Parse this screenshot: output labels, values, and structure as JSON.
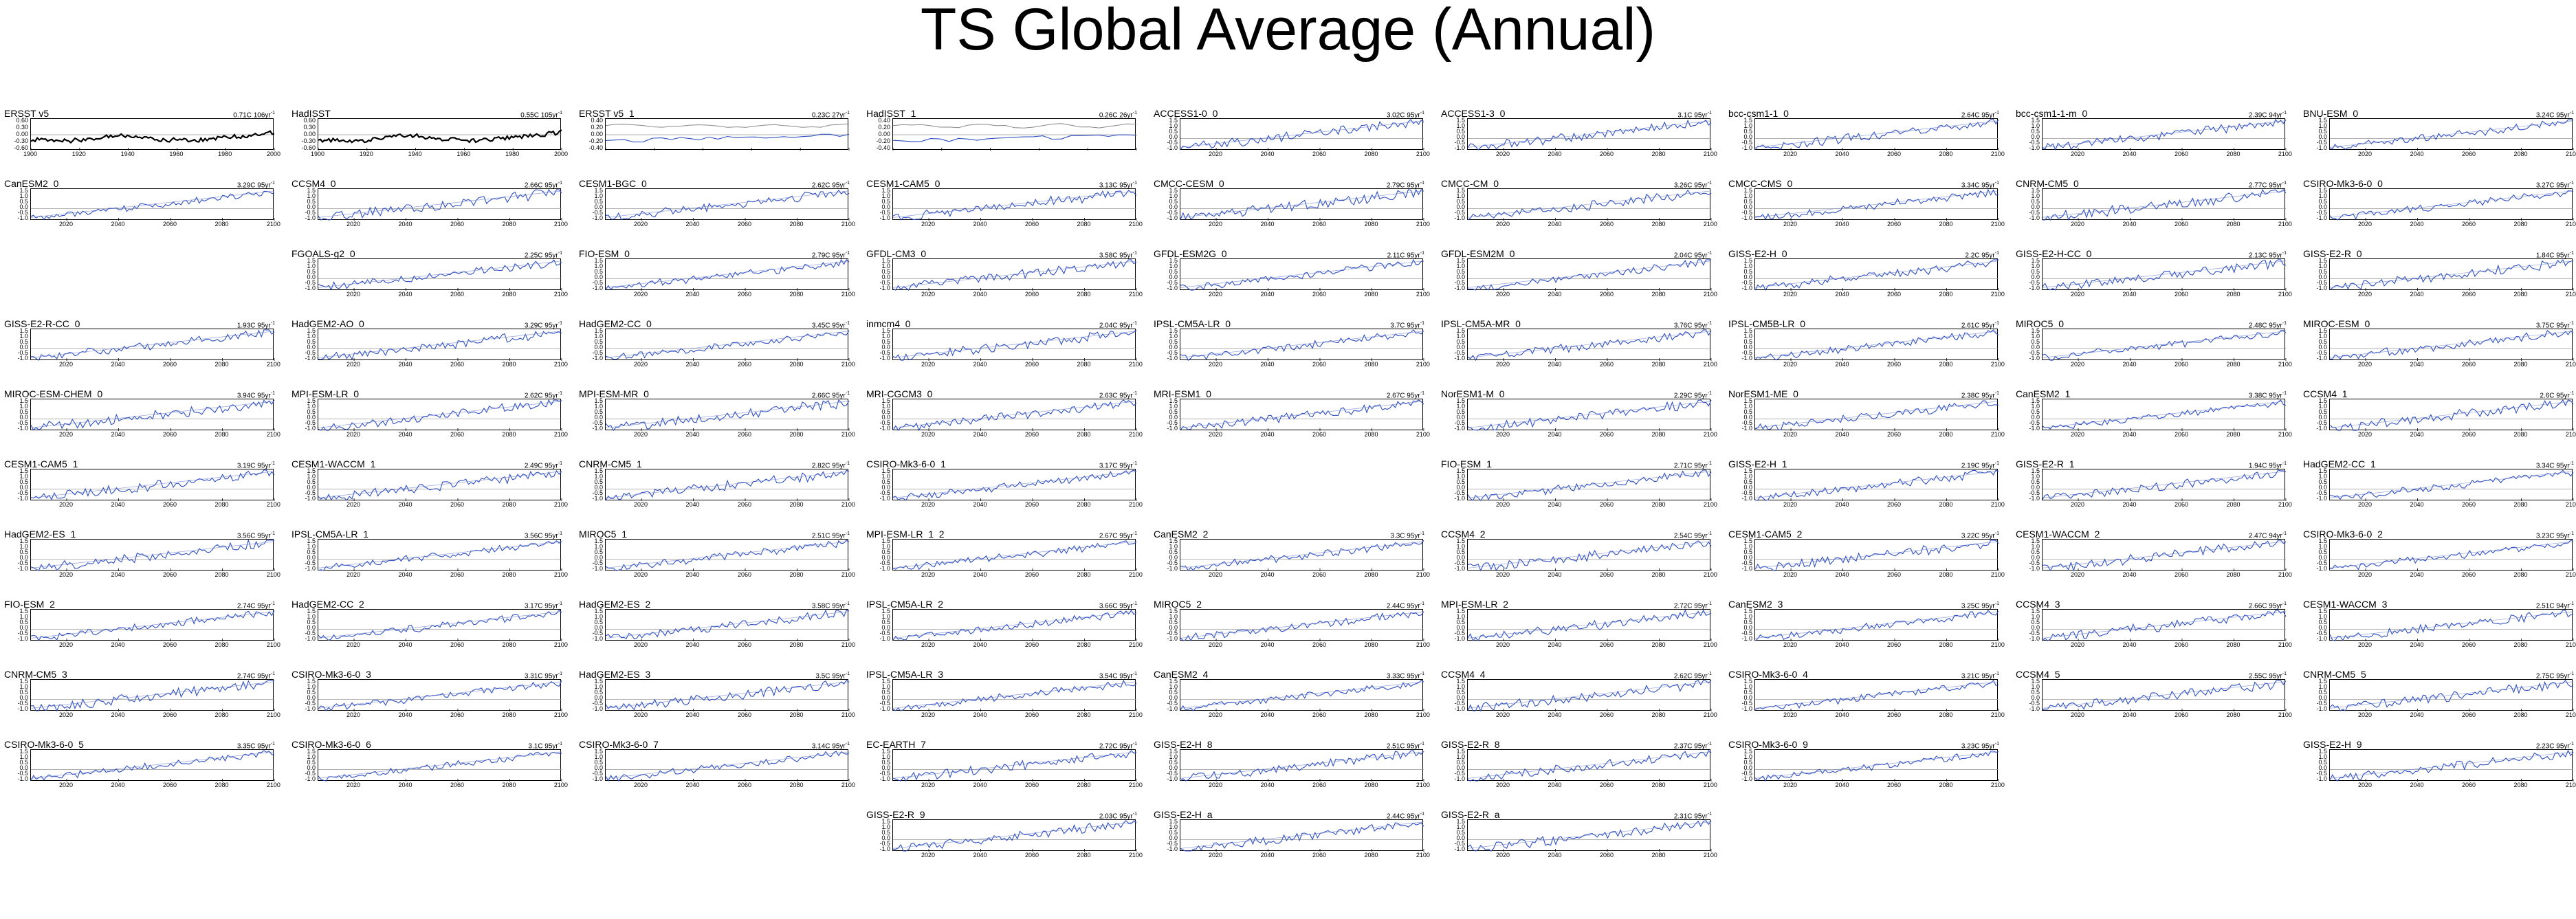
{
  "page": {
    "title": "TS Global Average (Annual)"
  },
  "layout_hint": {
    "columns": 9
  },
  "panels": [
    {
      "name": "ERSST v5",
      "trend": "0.71C 106yr",
      "tsup": "-1",
      "kind": "obs",
      "row": 0,
      "col": 0
    },
    {
      "name": "HadISST",
      "trend": "0.55C 105yr",
      "tsup": "-1",
      "kind": "obs",
      "row": 0,
      "col": 1
    },
    {
      "name": "ERSST v5_1",
      "trend": "0.23C 27yr",
      "tsup": "-1",
      "kind": "obs2",
      "row": 0,
      "col": 2
    },
    {
      "name": "HadISST_1",
      "trend": "0.26C 26yr",
      "tsup": "-1",
      "kind": "obs2",
      "row": 0,
      "col": 3
    },
    {
      "name": "ACCESS1-0_0",
      "trend": "3.02C 95yr",
      "tsup": "-1",
      "kind": "model",
      "row": 0,
      "col": 4
    },
    {
      "name": "ACCESS1-3_0",
      "trend": "3.1C 95yr",
      "tsup": "-1",
      "kind": "model",
      "row": 0,
      "col": 5
    },
    {
      "name": "bcc-csm1-1_0",
      "trend": "2.64C 95yr",
      "tsup": "-1",
      "kind": "model",
      "row": 0,
      "col": 6
    },
    {
      "name": "bcc-csm1-1-m_0",
      "trend": "2.39C 94yr",
      "tsup": "-1",
      "kind": "model",
      "row": 0,
      "col": 7
    },
    {
      "name": "BNU-ESM_0",
      "trend": "3.24C 95yr",
      "tsup": "-1",
      "kind": "model",
      "row": 0,
      "col": 8
    },
    {
      "name": "CanESM2_0",
      "trend": "3.29C 95yr",
      "tsup": "-1",
      "kind": "model",
      "row": 1,
      "col": 0
    },
    {
      "name": "CCSM4_0",
      "trend": "2.66C 95yr",
      "tsup": "-1",
      "kind": "model",
      "row": 1,
      "col": 1
    },
    {
      "name": "CESM1-BGC_0",
      "trend": "2.62C 95yr",
      "tsup": "-1",
      "kind": "model",
      "row": 1,
      "col": 2
    },
    {
      "name": "CESM1-CAM5_0",
      "trend": "3.13C 95yr",
      "tsup": "-1",
      "kind": "model",
      "row": 1,
      "col": 3
    },
    {
      "name": "CMCC-CESM_0",
      "trend": "2.79C 95yr",
      "tsup": "-1",
      "kind": "model",
      "row": 1,
      "col": 4
    },
    {
      "name": "CMCC-CM_0",
      "trend": "3.26C 95yr",
      "tsup": "-1",
      "kind": "model",
      "row": 1,
      "col": 5
    },
    {
      "name": "CMCC-CMS_0",
      "trend": "3.34C 95yr",
      "tsup": "-1",
      "kind": "model",
      "row": 1,
      "col": 6
    },
    {
      "name": "CNRM-CM5_0",
      "trend": "2.77C 95yr",
      "tsup": "-1",
      "kind": "model",
      "row": 1,
      "col": 7
    },
    {
      "name": "CSIRO-Mk3-6-0_0",
      "trend": "3.27C 95yr",
      "tsup": "-1",
      "kind": "model",
      "row": 1,
      "col": 8
    },
    {
      "name": "FGOALS-g2_0",
      "trend": "2.25C 95yr",
      "tsup": "-1",
      "kind": "model",
      "row": 2,
      "col": 1
    },
    {
      "name": "FIO-ESM_0",
      "trend": "2.79C 95yr",
      "tsup": "-1",
      "kind": "model",
      "row": 2,
      "col": 2
    },
    {
      "name": "GFDL-CM3_0",
      "trend": "3.58C 95yr",
      "tsup": "-1",
      "kind": "model",
      "row": 2,
      "col": 3
    },
    {
      "name": "GFDL-ESM2G_0",
      "trend": "2.11C 95yr",
      "tsup": "-1",
      "kind": "model",
      "row": 2,
      "col": 4
    },
    {
      "name": "GFDL-ESM2M_0",
      "trend": "2.04C 95yr",
      "tsup": "-1",
      "kind": "model",
      "row": 2,
      "col": 5
    },
    {
      "name": "GISS-E2-H_0",
      "trend": "2.2C 95yr",
      "tsup": "-1",
      "kind": "model",
      "row": 2,
      "col": 6
    },
    {
      "name": "GISS-E2-H-CC_0",
      "trend": "2.13C 95yr",
      "tsup": "-1",
      "kind": "model",
      "row": 2,
      "col": 7
    },
    {
      "name": "GISS-E2-R_0",
      "trend": "1.84C 95yr",
      "tsup": "-1",
      "kind": "model",
      "row": 2,
      "col": 8
    },
    {
      "name": "GISS-E2-R-CC_0",
      "trend": "1.93C 95yr",
      "tsup": "-1",
      "kind": "model",
      "row": 3,
      "col": 0
    },
    {
      "name": "HadGEM2-AO_0",
      "trend": "3.29C 95yr",
      "tsup": "-1",
      "kind": "model",
      "row": 3,
      "col": 1
    },
    {
      "name": "HadGEM2-CC_0",
      "trend": "3.45C 95yr",
      "tsup": "-1",
      "kind": "model",
      "row": 3,
      "col": 2
    },
    {
      "name": "inmcm4_0",
      "trend": "2.04C 95yr",
      "tsup": "-1",
      "kind": "model",
      "row": 3,
      "col": 3
    },
    {
      "name": "IPSL-CM5A-LR_0",
      "trend": "3.7C 95yr",
      "tsup": "-1",
      "kind": "model",
      "row": 3,
      "col": 4
    },
    {
      "name": "IPSL-CM5A-MR_0",
      "trend": "3.76C 95yr",
      "tsup": "-1",
      "kind": "model",
      "row": 3,
      "col": 5
    },
    {
      "name": "IPSL-CM5B-LR_0",
      "trend": "2.61C 95yr",
      "tsup": "-1",
      "kind": "model",
      "row": 3,
      "col": 6
    },
    {
      "name": "MIROC5_0",
      "trend": "2.48C 95yr",
      "tsup": "-1",
      "kind": "model",
      "row": 3,
      "col": 7
    },
    {
      "name": "MIROC-ESM_0",
      "trend": "3.75C 95yr",
      "tsup": "-1",
      "kind": "model",
      "row": 3,
      "col": 8
    },
    {
      "name": "MIROC-ESM-CHEM_0",
      "trend": "3.94C 95yr",
      "tsup": "-1",
      "kind": "model",
      "row": 4,
      "col": 0
    },
    {
      "name": "MPI-ESM-LR_0",
      "trend": "2.62C 95yr",
      "tsup": "-1",
      "kind": "model",
      "row": 4,
      "col": 1
    },
    {
      "name": "MPI-ESM-MR_0",
      "trend": "2.66C 95yr",
      "tsup": "-1",
      "kind": "model",
      "row": 4,
      "col": 2
    },
    {
      "name": "MRI-CGCM3_0",
      "trend": "2.63C 95yr",
      "tsup": "-1",
      "kind": "model",
      "row": 4,
      "col": 3
    },
    {
      "name": "MRI-ESM1_0",
      "trend": "2.67C 95yr",
      "tsup": "-1",
      "kind": "model",
      "row": 4,
      "col": 4
    },
    {
      "name": "NorESM1-M_0",
      "trend": "2.29C 95yr",
      "tsup": "-1",
      "kind": "model",
      "row": 4,
      "col": 5
    },
    {
      "name": "NorESM1-ME_0",
      "trend": "2.38C 95yr",
      "tsup": "-1",
      "kind": "model",
      "row": 4,
      "col": 6
    },
    {
      "name": "CanESM2_1",
      "trend": "3.38C 95yr",
      "tsup": "-1",
      "kind": "model",
      "row": 4,
      "col": 7
    },
    {
      "name": "CCSM4_1",
      "trend": "2.6C 95yr",
      "tsup": "-1",
      "kind": "model",
      "row": 4,
      "col": 8
    },
    {
      "name": "CESM1-CAM5_1",
      "trend": "3.19C 95yr",
      "tsup": "-1",
      "kind": "model",
      "row": 5,
      "col": 0
    },
    {
      "name": "CESM1-WACCM_1",
      "trend": "2.49C 95yr",
      "tsup": "-1",
      "kind": "model",
      "row": 5,
      "col": 1
    },
    {
      "name": "CNRM-CM5_1",
      "trend": "2.82C 95yr",
      "tsup": "-1",
      "kind": "model",
      "row": 5,
      "col": 2
    },
    {
      "name": "CSIRO-Mk3-6-0_1",
      "trend": "3.17C 95yr",
      "tsup": "-1",
      "kind": "model",
      "row": 5,
      "col": 3
    },
    {
      "name": "FIO-ESM_1",
      "trend": "2.71C 95yr",
      "tsup": "-1",
      "kind": "model",
      "row": 5,
      "col": 5
    },
    {
      "name": "GISS-E2-H_1",
      "trend": "2.19C 95yr",
      "tsup": "-1",
      "kind": "model",
      "row": 5,
      "col": 6
    },
    {
      "name": "GISS-E2-R_1",
      "trend": "1.94C 95yr",
      "tsup": "-1",
      "kind": "model",
      "row": 5,
      "col": 7
    },
    {
      "name": "HadGEM2-CC_1",
      "trend": "3.34C 95yr",
      "tsup": "-1",
      "kind": "model",
      "row": 5,
      "col": 8
    },
    {
      "name": "HadGEM2-ES_1",
      "trend": "3.56C 95yr",
      "tsup": "-1",
      "kind": "model",
      "row": 6,
      "col": 0
    },
    {
      "name": "IPSL-CM5A-LR_1",
      "trend": "3.56C 95yr",
      "tsup": "-1",
      "kind": "model",
      "row": 6,
      "col": 1
    },
    {
      "name": "MIROC5_1",
      "trend": "2.51C 95yr",
      "tsup": "-1",
      "kind": "model",
      "row": 6,
      "col": 2
    },
    {
      "name": "MPI-ESM-LR_1_2",
      "trend": "2.67C 95yr",
      "tsup": "-1",
      "kind": "model",
      "row": 6,
      "col": 3
    },
    {
      "name": "CanESM2_2",
      "trend": "3.3C 95yr",
      "tsup": "-1",
      "kind": "model",
      "row": 6,
      "col": 4
    },
    {
      "name": "CCSM4_2",
      "trend": "2.54C 95yr",
      "tsup": "-1",
      "kind": "model",
      "row": 6,
      "col": 5
    },
    {
      "name": "CESM1-CAM5_2",
      "trend": "3.22C 95yr",
      "tsup": "-1",
      "kind": "model",
      "row": 6,
      "col": 6
    },
    {
      "name": "CESM1-WACCM_2",
      "trend": "2.47C 94yr",
      "tsup": "-1",
      "kind": "model",
      "row": 6,
      "col": 7
    },
    {
      "name": "CSIRO-Mk3-6-0_2",
      "trend": "3.23C 95yr",
      "tsup": "-1",
      "kind": "model",
      "row": 6,
      "col": 8
    },
    {
      "name": "FIO-ESM_2",
      "trend": "2.74C 95yr",
      "tsup": "-1",
      "kind": "model",
      "row": 7,
      "col": 0
    },
    {
      "name": "HadGEM2-CC_2",
      "trend": "3.17C 95yr",
      "tsup": "-1",
      "kind": "model",
      "row": 7,
      "col": 1
    },
    {
      "name": "HadGEM2-ES_2",
      "trend": "3.58C 95yr",
      "tsup": "-1",
      "kind": "model",
      "row": 7,
      "col": 2
    },
    {
      "name": "IPSL-CM5A-LR_2",
      "trend": "3.66C 95yr",
      "tsup": "-1",
      "kind": "model",
      "row": 7,
      "col": 3
    },
    {
      "name": "MIROC5_2",
      "trend": "2.44C 95yr",
      "tsup": "-1",
      "kind": "model",
      "row": 7,
      "col": 4
    },
    {
      "name": "MPI-ESM-LR_2",
      "trend": "2.72C 95yr",
      "tsup": "-1",
      "kind": "model",
      "row": 7,
      "col": 5
    },
    {
      "name": "CanESM2_3",
      "trend": "3.25C 95yr",
      "tsup": "-1",
      "kind": "model",
      "row": 7,
      "col": 6
    },
    {
      "name": "CCSM4_3",
      "trend": "2.66C 95yr",
      "tsup": "-1",
      "kind": "model",
      "row": 7,
      "col": 7
    },
    {
      "name": "CESM1-WACCM_3",
      "trend": "2.51C 94yr",
      "tsup": "-1",
      "kind": "model",
      "row": 7,
      "col": 8
    },
    {
      "name": "CNRM-CM5_3",
      "trend": "2.74C 95yr",
      "tsup": "-1",
      "kind": "model",
      "row": 8,
      "col": 0
    },
    {
      "name": "CSIRO-Mk3-6-0_3",
      "trend": "3.31C 95yr",
      "tsup": "-1",
      "kind": "model",
      "row": 8,
      "col": 1
    },
    {
      "name": "HadGEM2-ES_3",
      "trend": "3.5C 95yr",
      "tsup": "-1",
      "kind": "model",
      "row": 8,
      "col": 2
    },
    {
      "name": "IPSL-CM5A-LR_3",
      "trend": "3.54C 95yr",
      "tsup": "-1",
      "kind": "model",
      "row": 8,
      "col": 3
    },
    {
      "name": "CanESM2_4",
      "trend": "3.33C 95yr",
      "tsup": "-1",
      "kind": "model",
      "row": 8,
      "col": 4
    },
    {
      "name": "CCSM4_4",
      "trend": "2.62C 95yr",
      "tsup": "-1",
      "kind": "model",
      "row": 8,
      "col": 5
    },
    {
      "name": "CSIRO-Mk3-6-0_4",
      "trend": "3.21C 95yr",
      "tsup": "-1",
      "kind": "model",
      "row": 8,
      "col": 6
    },
    {
      "name": "CCSM4_5",
      "trend": "2.55C 95yr",
      "tsup": "-1",
      "kind": "model",
      "row": 8,
      "col": 7
    },
    {
      "name": "CNRM-CM5_5",
      "trend": "2.75C 95yr",
      "tsup": "-1",
      "kind": "model",
      "row": 8,
      "col": 8
    },
    {
      "name": "CSIRO-Mk3-6-0_5",
      "trend": "3.35C 95yr",
      "tsup": "-1",
      "kind": "model",
      "row": 9,
      "col": 0
    },
    {
      "name": "CSIRO-Mk3-6-0_6",
      "trend": "3.1C 95yr",
      "tsup": "-1",
      "kind": "model",
      "row": 9,
      "col": 1
    },
    {
      "name": "CSIRO-Mk3-6-0_7",
      "trend": "3.14C 95yr",
      "tsup": "-1",
      "kind": "model",
      "row": 9,
      "col": 2
    },
    {
      "name": "EC-EARTH_7",
      "trend": "2.72C 95yr",
      "tsup": "-1",
      "kind": "model",
      "row": 9,
      "col": 3
    },
    {
      "name": "GISS-E2-H_8",
      "trend": "2.51C 95yr",
      "tsup": "-1",
      "kind": "model",
      "row": 9,
      "col": 4
    },
    {
      "name": "GISS-E2-R_8",
      "trend": "2.37C 95yr",
      "tsup": "-1",
      "kind": "model",
      "row": 9,
      "col": 5
    },
    {
      "name": "CSIRO-Mk3-6-0_9",
      "trend": "3.23C 95yr",
      "tsup": "-1",
      "kind": "model",
      "row": 9,
      "col": 6
    },
    {
      "name": "GISS-E2-H_9",
      "trend": "2.23C 95yr",
      "tsup": "-1",
      "kind": "model",
      "row": 9,
      "col": 8
    },
    {
      "name": "GISS-E2-R_9",
      "trend": "2.03C 95yr",
      "tsup": "-1",
      "kind": "model",
      "row": 10,
      "col": 3
    },
    {
      "name": "GISS-E2-H_a",
      "trend": "2.44C 95yr",
      "tsup": "-1",
      "kind": "model",
      "row": 10,
      "col": 4
    },
    {
      "name": "GISS-E2-R_a",
      "trend": "2.31C 95yr",
      "tsup": "-1",
      "kind": "model",
      "row": 10,
      "col": 5
    }
  ],
  "axes": {
    "obs_x_ticks": [
      "1900",
      "1920",
      "1940",
      "1960",
      "1980",
      "2000"
    ],
    "model_x_ticks": [
      "2020",
      "2040",
      "2060",
      "2080",
      "2100"
    ],
    "obs_y_ticks": [
      "0.60",
      "0.30",
      "0.00",
      "-0.30",
      "-0.60"
    ],
    "obs2_y_ticks": [
      "0.40",
      "0.20",
      "0.00",
      "-0.20",
      "-0.40"
    ],
    "model_y_ticks": [
      "1.5",
      "1.0",
      "0.5",
      "0.0",
      "-0.5",
      "-1.0"
    ]
  },
  "colors": {
    "series": "#2f4fbf",
    "obs": "#000000",
    "obs_secondary": "#888888",
    "zero_line": "#999999"
  },
  "chart_data": {
    "type": "line",
    "title": "TS Global Average (Annual)",
    "grid": false,
    "note_values": "each panel shows an annual global-mean surface temperature anomaly time series; model runs span 2006-2100, observations span 1900-2016",
    "model_series_shape": {
      "x": [
        2006,
        2020,
        2040,
        2060,
        2080,
        2100
      ],
      "y_typical": [
        -1.1,
        -0.8,
        -0.2,
        0.4,
        0.9,
        1.5
      ]
    },
    "obs_series_shape": {
      "x": [
        1900,
        1920,
        1940,
        1960,
        1980,
        2000,
        2016
      ],
      "y_typical": [
        -0.35,
        -0.4,
        -0.05,
        -0.1,
        -0.05,
        0.2,
        0.4
      ]
    }
  }
}
